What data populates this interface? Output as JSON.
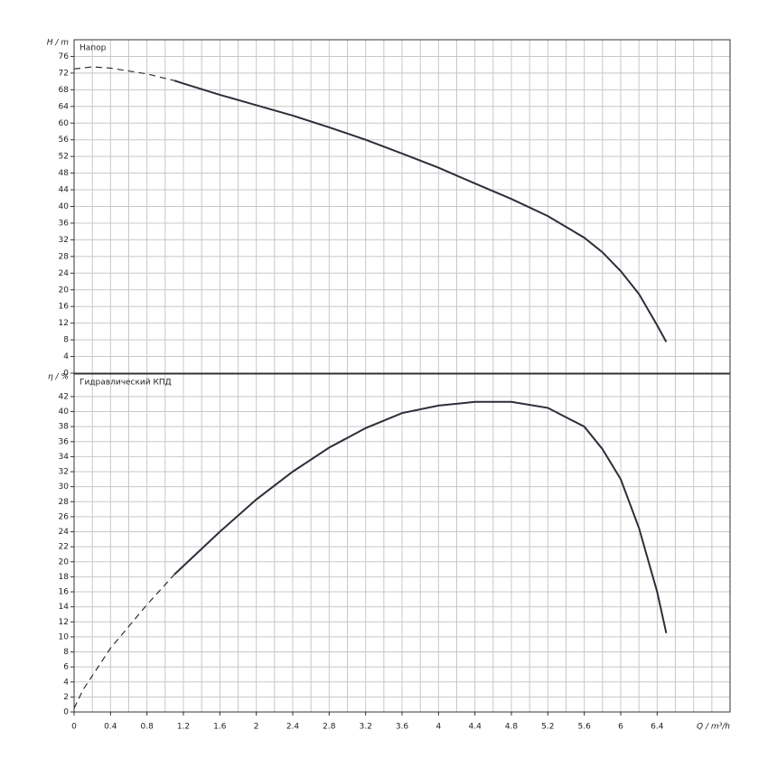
{
  "chart_data": [
    {
      "type": "line",
      "title": "Напор",
      "ylabel": "H / m",
      "x": [
        0,
        0.2,
        0.4,
        0.8,
        1.1,
        1.2,
        1.6,
        2,
        2.4,
        2.8,
        3.2,
        3.6,
        4,
        4.4,
        4.8,
        5.2,
        5.6,
        5.8,
        6,
        6.2,
        6.4,
        6.5
      ],
      "series": [
        {
          "color": "#2b2f3a",
          "values": [
            73,
            73.5,
            73.2,
            71.8,
            70.2,
            69.5,
            66.8,
            64.3,
            61.8,
            59,
            56,
            52.7,
            49.3,
            45.5,
            41.8,
            37.7,
            32.5,
            29,
            24.5,
            19,
            11.5,
            7.5
          ]
        }
      ],
      "dashed_to_x": 1.1,
      "xlim": [
        0,
        7.2
      ],
      "ylim": [
        0,
        80
      ],
      "yticks": [
        0,
        4,
        8,
        12,
        16,
        20,
        24,
        28,
        32,
        36,
        40,
        44,
        48,
        52,
        56,
        60,
        64,
        68,
        72,
        76
      ],
      "grid": true
    },
    {
      "type": "line",
      "title": "Гидравлический КПД",
      "ylabel": "η / %",
      "xlabel": "Q / m³/h",
      "x": [
        0,
        0.1,
        0.4,
        0.8,
        1.1,
        1.6,
        2,
        2.4,
        2.8,
        3.2,
        3.6,
        4,
        4.4,
        4.8,
        5.2,
        5.6,
        5.8,
        6,
        6.2,
        6.4,
        6.5
      ],
      "series": [
        {
          "color": "#2b2f3a",
          "values": [
            0.5,
            3,
            8.5,
            14.3,
            18.3,
            24,
            28.3,
            32,
            35.2,
            37.8,
            39.8,
            40.8,
            41.3,
            41.3,
            40.5,
            38,
            35,
            31,
            24.5,
            16,
            10.5
          ]
        }
      ],
      "dashed_to_x": 1.1,
      "xlim": [
        0,
        7.2
      ],
      "ylim": [
        0,
        45
      ],
      "xticks": [
        0,
        0.4,
        0.8,
        1.2,
        1.6,
        2,
        2.4,
        2.8,
        3.2,
        3.6,
        4,
        4.4,
        4.8,
        5.2,
        5.6,
        6,
        6.4
      ],
      "xgrid": [
        0,
        0.2,
        0.4,
        0.6,
        0.8,
        1,
        1.2,
        1.4,
        1.6,
        1.8,
        2,
        2.2,
        2.4,
        2.6,
        2.8,
        3,
        3.2,
        3.4,
        3.6,
        3.8,
        4,
        4.2,
        4.4,
        4.6,
        4.8,
        5,
        5.2,
        5.4,
        5.6,
        5.8,
        6,
        6.2,
        6.4,
        6.6,
        6.8,
        7,
        7.2
      ],
      "yticks": [
        0,
        2,
        4,
        6,
        8,
        10,
        12,
        14,
        16,
        18,
        20,
        22,
        24,
        26,
        28,
        30,
        32,
        34,
        36,
        38,
        40,
        42
      ],
      "grid": true
    }
  ]
}
